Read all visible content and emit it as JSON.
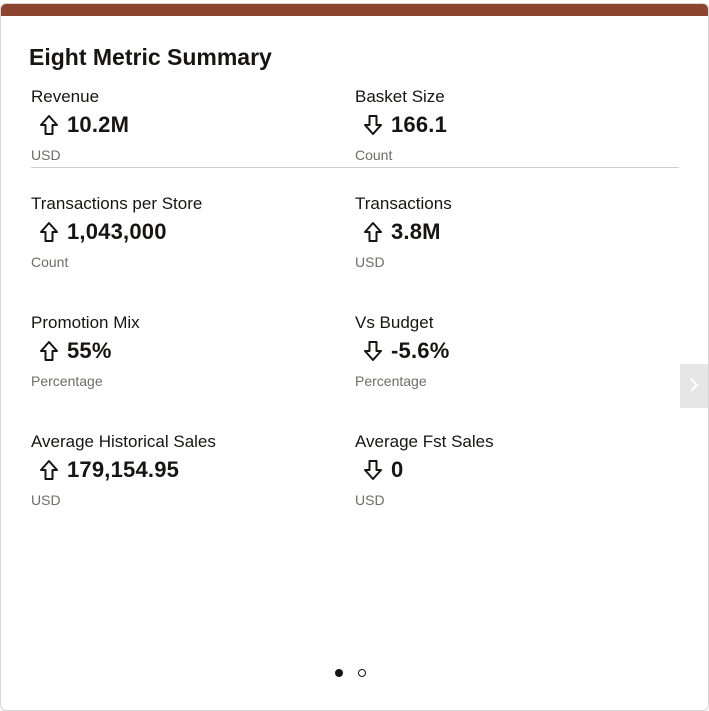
{
  "card": {
    "title": "Eight Metric Summary",
    "accent_color": "#8b4530"
  },
  "metrics": [
    {
      "label": "Revenue",
      "value": "10.2M",
      "unit": "USD",
      "trend": "up"
    },
    {
      "label": "Basket Size",
      "value": "166.1",
      "unit": "Count",
      "trend": "down"
    },
    {
      "label": "Transactions per Store",
      "value": "1,043,000",
      "unit": "Count",
      "trend": "up"
    },
    {
      "label": "Transactions",
      "value": "3.8M",
      "unit": "USD",
      "trend": "up"
    },
    {
      "label": "Promotion Mix",
      "value": "55%",
      "unit": "Percentage",
      "trend": "up"
    },
    {
      "label": "Vs Budget",
      "value": "-5.6%",
      "unit": "Percentage",
      "trend": "down"
    },
    {
      "label": "Average Historical Sales",
      "value": "179,154.95",
      "unit": "USD",
      "trend": "up"
    },
    {
      "label": "Average Fst Sales",
      "value": "0",
      "unit": "USD",
      "trend": "down"
    }
  ],
  "navigation": {
    "next_icon": "chevron-right-icon",
    "pages": 2,
    "current_page": 1
  }
}
